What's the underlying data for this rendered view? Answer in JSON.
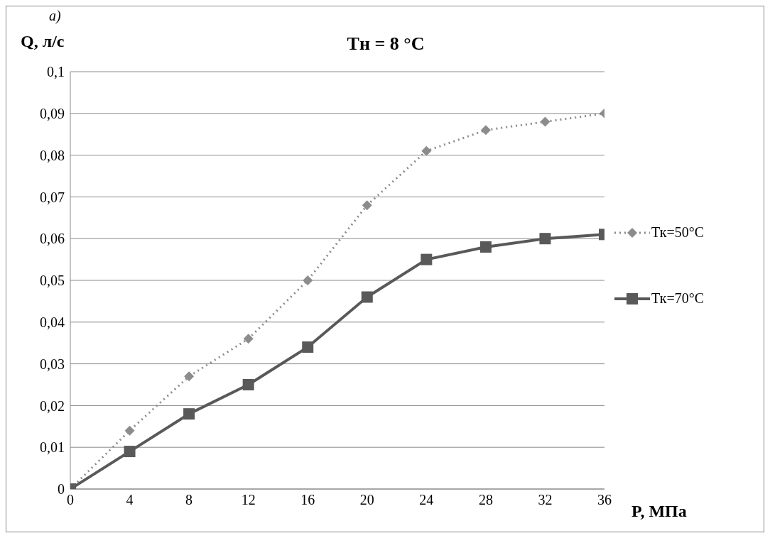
{
  "chart_data": {
    "type": "line",
    "title": "Тн = 8 °С",
    "xlabel": "P, МПа",
    "ylabel": "Q, л/с",
    "annotations": [
      "а)"
    ],
    "x": [
      0,
      4,
      8,
      12,
      16,
      20,
      24,
      28,
      32,
      36
    ],
    "xlim": [
      0,
      36
    ],
    "xticks": [
      0,
      4,
      8,
      12,
      16,
      20,
      24,
      28,
      32,
      36
    ],
    "ylim": [
      0,
      0.1
    ],
    "yticks": [
      0,
      {
        "value": 0.01,
        "label": "0,01"
      },
      {
        "value": 0.02,
        "label": "0,02"
      },
      {
        "value": 0.03,
        "label": "0,03"
      },
      {
        "value": 0.04,
        "label": "0,04"
      },
      {
        "value": 0.05,
        "label": "0,05"
      },
      {
        "value": 0.06,
        "label": "0,06"
      },
      {
        "value": 0.07,
        "label": "0,07"
      },
      {
        "value": 0.08,
        "label": "0,08"
      },
      {
        "value": 0.09,
        "label": "0,09"
      },
      {
        "value": 0.1,
        "label": "0,1"
      }
    ],
    "grid": "y",
    "legend": "right",
    "series": [
      {
        "name": "Тк=50°С",
        "color": "#8c8c8c",
        "marker": "diamond",
        "line_style": "dotted",
        "values": [
          0,
          0.014,
          0.027,
          0.036,
          0.05,
          0.068,
          0.081,
          0.086,
          0.088,
          0.09
        ]
      },
      {
        "name": "Тк=70°С",
        "color": "#595959",
        "marker": "square",
        "line_style": "solid",
        "values": [
          0,
          0.009,
          0.018,
          0.025,
          0.034,
          0.046,
          0.055,
          0.058,
          0.06,
          0.061
        ]
      }
    ]
  }
}
